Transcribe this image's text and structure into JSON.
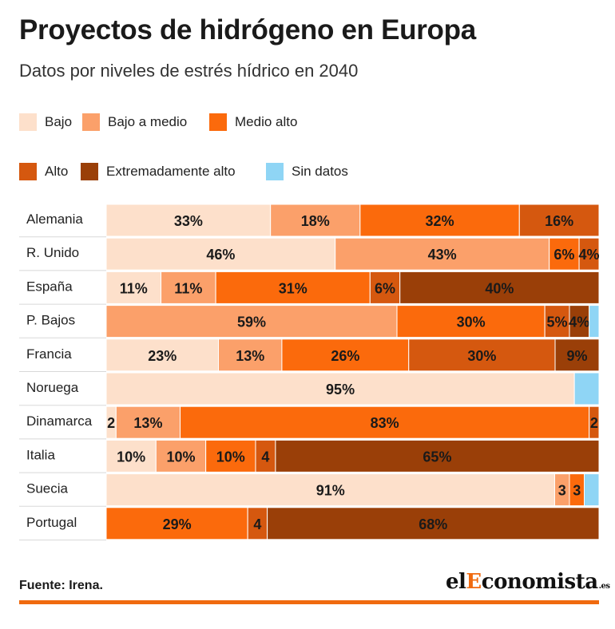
{
  "title": "Proyectos de hidrógeno en Europa",
  "subtitle": "Datos por niveles de estrés hídrico en 2040",
  "source": "Fuente: Irena.",
  "logo": {
    "prefix": "el",
    "accent": "E",
    "rest": "conomista",
    "suffix": ".es"
  },
  "colors": {
    "Bajo": "#fde0cb",
    "Bajo a medio": "#fba06a",
    "Medio alto": "#fb6a0c",
    "Alto": "#d5580f",
    "Extremadamente alto": "#9a3f08",
    "Sin datos": "#8fd5f5",
    "brand": "#f06a0f"
  },
  "chart_data": {
    "type": "bar",
    "orientation": "horizontal",
    "stacked": true,
    "title": "Proyectos de hidrógeno en Europa",
    "subtitle": "Datos por niveles de estrés hídrico en 2040",
    "legend_position": "top",
    "xlim": [
      0,
      100
    ],
    "categories": [
      "Alemania",
      "R. Unido",
      "España",
      "P. Bajos",
      "Francia",
      "Noruega",
      "Dinamarca",
      "Italia",
      "Suecia",
      "Portugal"
    ],
    "series": [
      {
        "name": "Bajo",
        "values": [
          33,
          46,
          11,
          0,
          23,
          95,
          2,
          10,
          91,
          0
        ],
        "labels": [
          "33%",
          "46%",
          "11%",
          "",
          "23%",
          "95%",
          "2",
          "10%",
          "91%",
          ""
        ]
      },
      {
        "name": "Bajo a medio",
        "values": [
          18,
          43,
          11,
          59,
          13,
          0,
          13,
          10,
          3,
          0
        ],
        "labels": [
          "18%",
          "43%",
          "11%",
          "59%",
          "13%",
          "",
          "13%",
          "10%",
          "3",
          ""
        ]
      },
      {
        "name": "Medio alto",
        "values": [
          32,
          6,
          31,
          30,
          26,
          0,
          83,
          10,
          3,
          29
        ],
        "labels": [
          "32%",
          "6%",
          "31%",
          "30%",
          "26%",
          "",
          "83%",
          "10%",
          "3",
          "29%"
        ]
      },
      {
        "name": "Alto",
        "values": [
          16,
          4,
          6,
          5,
          30,
          0,
          2,
          4,
          0,
          4
        ],
        "labels": [
          "16%",
          "4%",
          "6%",
          "5%",
          "30%",
          "",
          "2",
          "4",
          "",
          "4"
        ]
      },
      {
        "name": "Extremadamente alto",
        "values": [
          0,
          0,
          40,
          4,
          9,
          0,
          0,
          65,
          0,
          68
        ],
        "labels": [
          "",
          "",
          "40%",
          "4%",
          "9%",
          "",
          "",
          "65%",
          "",
          "68%"
        ]
      },
      {
        "name": "Sin datos",
        "values": [
          0,
          0,
          0,
          2,
          0,
          5,
          0,
          0,
          3,
          0
        ],
        "labels": [
          "",
          "",
          "",
          "",
          "",
          "",
          "",
          "",
          "",
          ""
        ]
      }
    ]
  }
}
